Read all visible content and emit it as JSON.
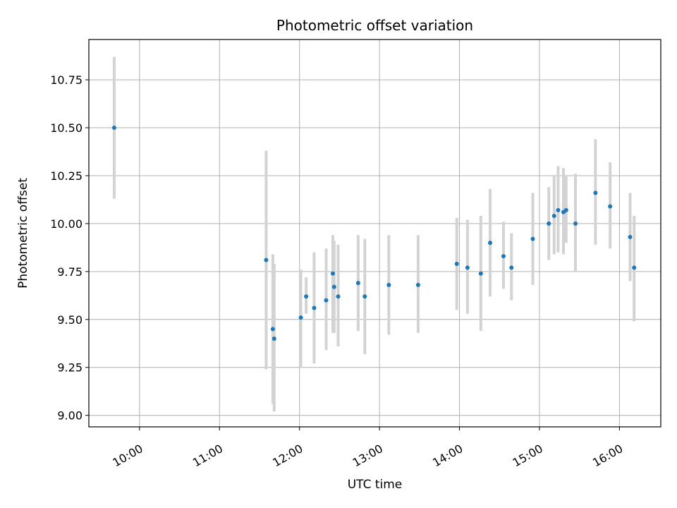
{
  "chart_data": {
    "type": "scatter",
    "title": "Photometric offset variation",
    "xlabel": "UTC time",
    "ylabel": "Photometric offset",
    "x_tick_labels": [
      "10:00",
      "11:00",
      "12:00",
      "13:00",
      "14:00",
      "15:00",
      "16:00"
    ],
    "y_tick_labels": [
      "9.00",
      "9.25",
      "9.50",
      "9.75",
      "10.00",
      "10.25",
      "10.50",
      "10.75"
    ],
    "xlim": [
      "09:22",
      "16:31"
    ],
    "ylim": [
      8.94,
      10.96
    ],
    "grid": true,
    "point_color": "#1f77b4",
    "errorbar_color": "#d3d3d3",
    "points": [
      {
        "t": "09:41",
        "y": 10.5,
        "lo": 10.13,
        "hi": 10.87
      },
      {
        "t": "11:35",
        "y": 9.81,
        "lo": 9.24,
        "hi": 10.38
      },
      {
        "t": "11:40",
        "y": 9.45,
        "lo": 9.06,
        "hi": 9.84
      },
      {
        "t": "11:41",
        "y": 9.4,
        "lo": 9.02,
        "hi": 9.79
      },
      {
        "t": "12:01",
        "y": 9.51,
        "lo": 9.25,
        "hi": 9.76
      },
      {
        "t": "12:05",
        "y": 9.62,
        "lo": 9.53,
        "hi": 9.72
      },
      {
        "t": "12:11",
        "y": 9.56,
        "lo": 9.27,
        "hi": 9.85
      },
      {
        "t": "12:20",
        "y": 9.6,
        "lo": 9.34,
        "hi": 9.87
      },
      {
        "t": "12:25",
        "y": 9.74,
        "lo": 9.43,
        "hi": 9.94
      },
      {
        "t": "12:26",
        "y": 9.67,
        "lo": 9.43,
        "hi": 9.91
      },
      {
        "t": "12:29",
        "y": 9.62,
        "lo": 9.36,
        "hi": 9.89
      },
      {
        "t": "12:44",
        "y": 9.69,
        "lo": 9.44,
        "hi": 9.94
      },
      {
        "t": "12:49",
        "y": 9.62,
        "lo": 9.32,
        "hi": 9.92
      },
      {
        "t": "13:07",
        "y": 9.68,
        "lo": 9.42,
        "hi": 9.94
      },
      {
        "t": "13:29",
        "y": 9.68,
        "lo": 9.43,
        "hi": 9.94
      },
      {
        "t": "13:58",
        "y": 9.79,
        "lo": 9.55,
        "hi": 10.03
      },
      {
        "t": "14:06",
        "y": 9.77,
        "lo": 9.53,
        "hi": 10.02
      },
      {
        "t": "14:16",
        "y": 9.74,
        "lo": 9.44,
        "hi": 10.04
      },
      {
        "t": "14:23",
        "y": 9.9,
        "lo": 9.62,
        "hi": 10.18
      },
      {
        "t": "14:33",
        "y": 9.83,
        "lo": 9.66,
        "hi": 10.01
      },
      {
        "t": "14:39",
        "y": 9.77,
        "lo": 9.6,
        "hi": 9.95
      },
      {
        "t": "14:55",
        "y": 9.92,
        "lo": 9.68,
        "hi": 10.16
      },
      {
        "t": "15:07",
        "y": 10.0,
        "lo": 9.81,
        "hi": 10.19
      },
      {
        "t": "15:11",
        "y": 10.04,
        "lo": 9.84,
        "hi": 10.25
      },
      {
        "t": "15:14",
        "y": 10.07,
        "lo": 9.85,
        "hi": 10.3
      },
      {
        "t": "15:18",
        "y": 10.06,
        "lo": 9.84,
        "hi": 10.29
      },
      {
        "t": "15:20",
        "y": 10.07,
        "lo": 9.9,
        "hi": 10.25
      },
      {
        "t": "15:27",
        "y": 10.0,
        "lo": 9.75,
        "hi": 10.26
      },
      {
        "t": "15:42",
        "y": 10.16,
        "lo": 9.89,
        "hi": 10.44
      },
      {
        "t": "15:53",
        "y": 10.09,
        "lo": 9.87,
        "hi": 10.32
      },
      {
        "t": "16:08",
        "y": 9.93,
        "lo": 9.7,
        "hi": 10.16
      },
      {
        "t": "16:11",
        "y": 9.77,
        "lo": 9.49,
        "hi": 10.04
      }
    ]
  }
}
